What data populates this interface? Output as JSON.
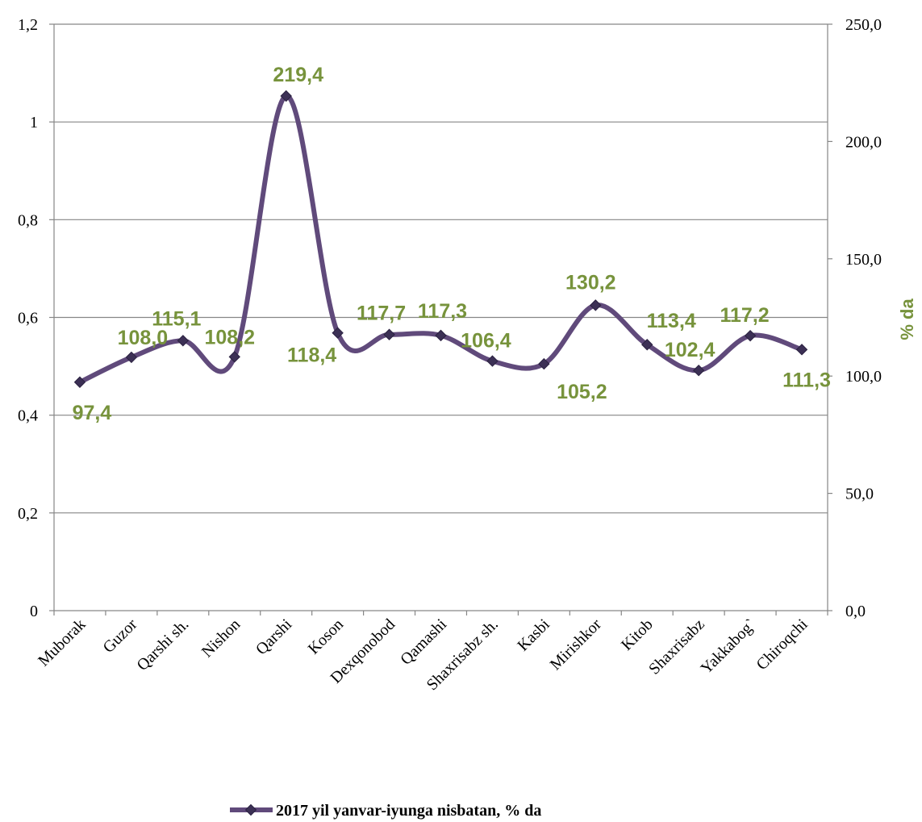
{
  "chart_data": {
    "type": "line",
    "categories": [
      "Muborak",
      "Guzor",
      "Qarshi sh.",
      "Nishon",
      "Qarshi",
      "Koson",
      "Dexqonobod",
      "Qamashi",
      "Shaxrisabz sh.",
      "Kasbi",
      "Mirishkor",
      "Kitob",
      "Shaxrisabz",
      "Yakkabog`",
      "Chiroqchi"
    ],
    "series": [
      {
        "name": "2017 yil yanvar-iyunga nisbatan, % da",
        "values": [
          97.4,
          108.0,
          115.1,
          108.2,
          219.4,
          118.4,
          117.7,
          117.3,
          106.4,
          105.2,
          130.2,
          113.4,
          102.4,
          117.2,
          111.3
        ],
        "value_labels": [
          "97,4",
          "108,0",
          "115,1",
          "108,2",
          "219,4",
          "118,4",
          "117,7",
          "117,3",
          "106,4",
          "105,2",
          "130,2",
          "113,4",
          "102,4",
          "117,2",
          "111,3"
        ],
        "color": "#604a7b",
        "marker": "diamond",
        "axis": "right"
      }
    ],
    "y_left": {
      "ylim": [
        0,
        1.2
      ],
      "ticks": [
        "0",
        "0,2",
        "0,4",
        "0,6",
        "0,8",
        "1",
        "1,2"
      ]
    },
    "y_right": {
      "ylim": [
        0,
        250
      ],
      "ylabel": "% da",
      "ticks": [
        "0,0",
        "50,0",
        "100,0",
        "150,0",
        "200,0",
        "250,0"
      ]
    },
    "grid": true,
    "smooth": true,
    "legend": {
      "position": "bottom",
      "label": "2017 yil yanvar-iyunga nisbatan, % da"
    },
    "colors": {
      "line": "#604a7b",
      "labels": "#77933c",
      "grid": "#868686"
    }
  }
}
